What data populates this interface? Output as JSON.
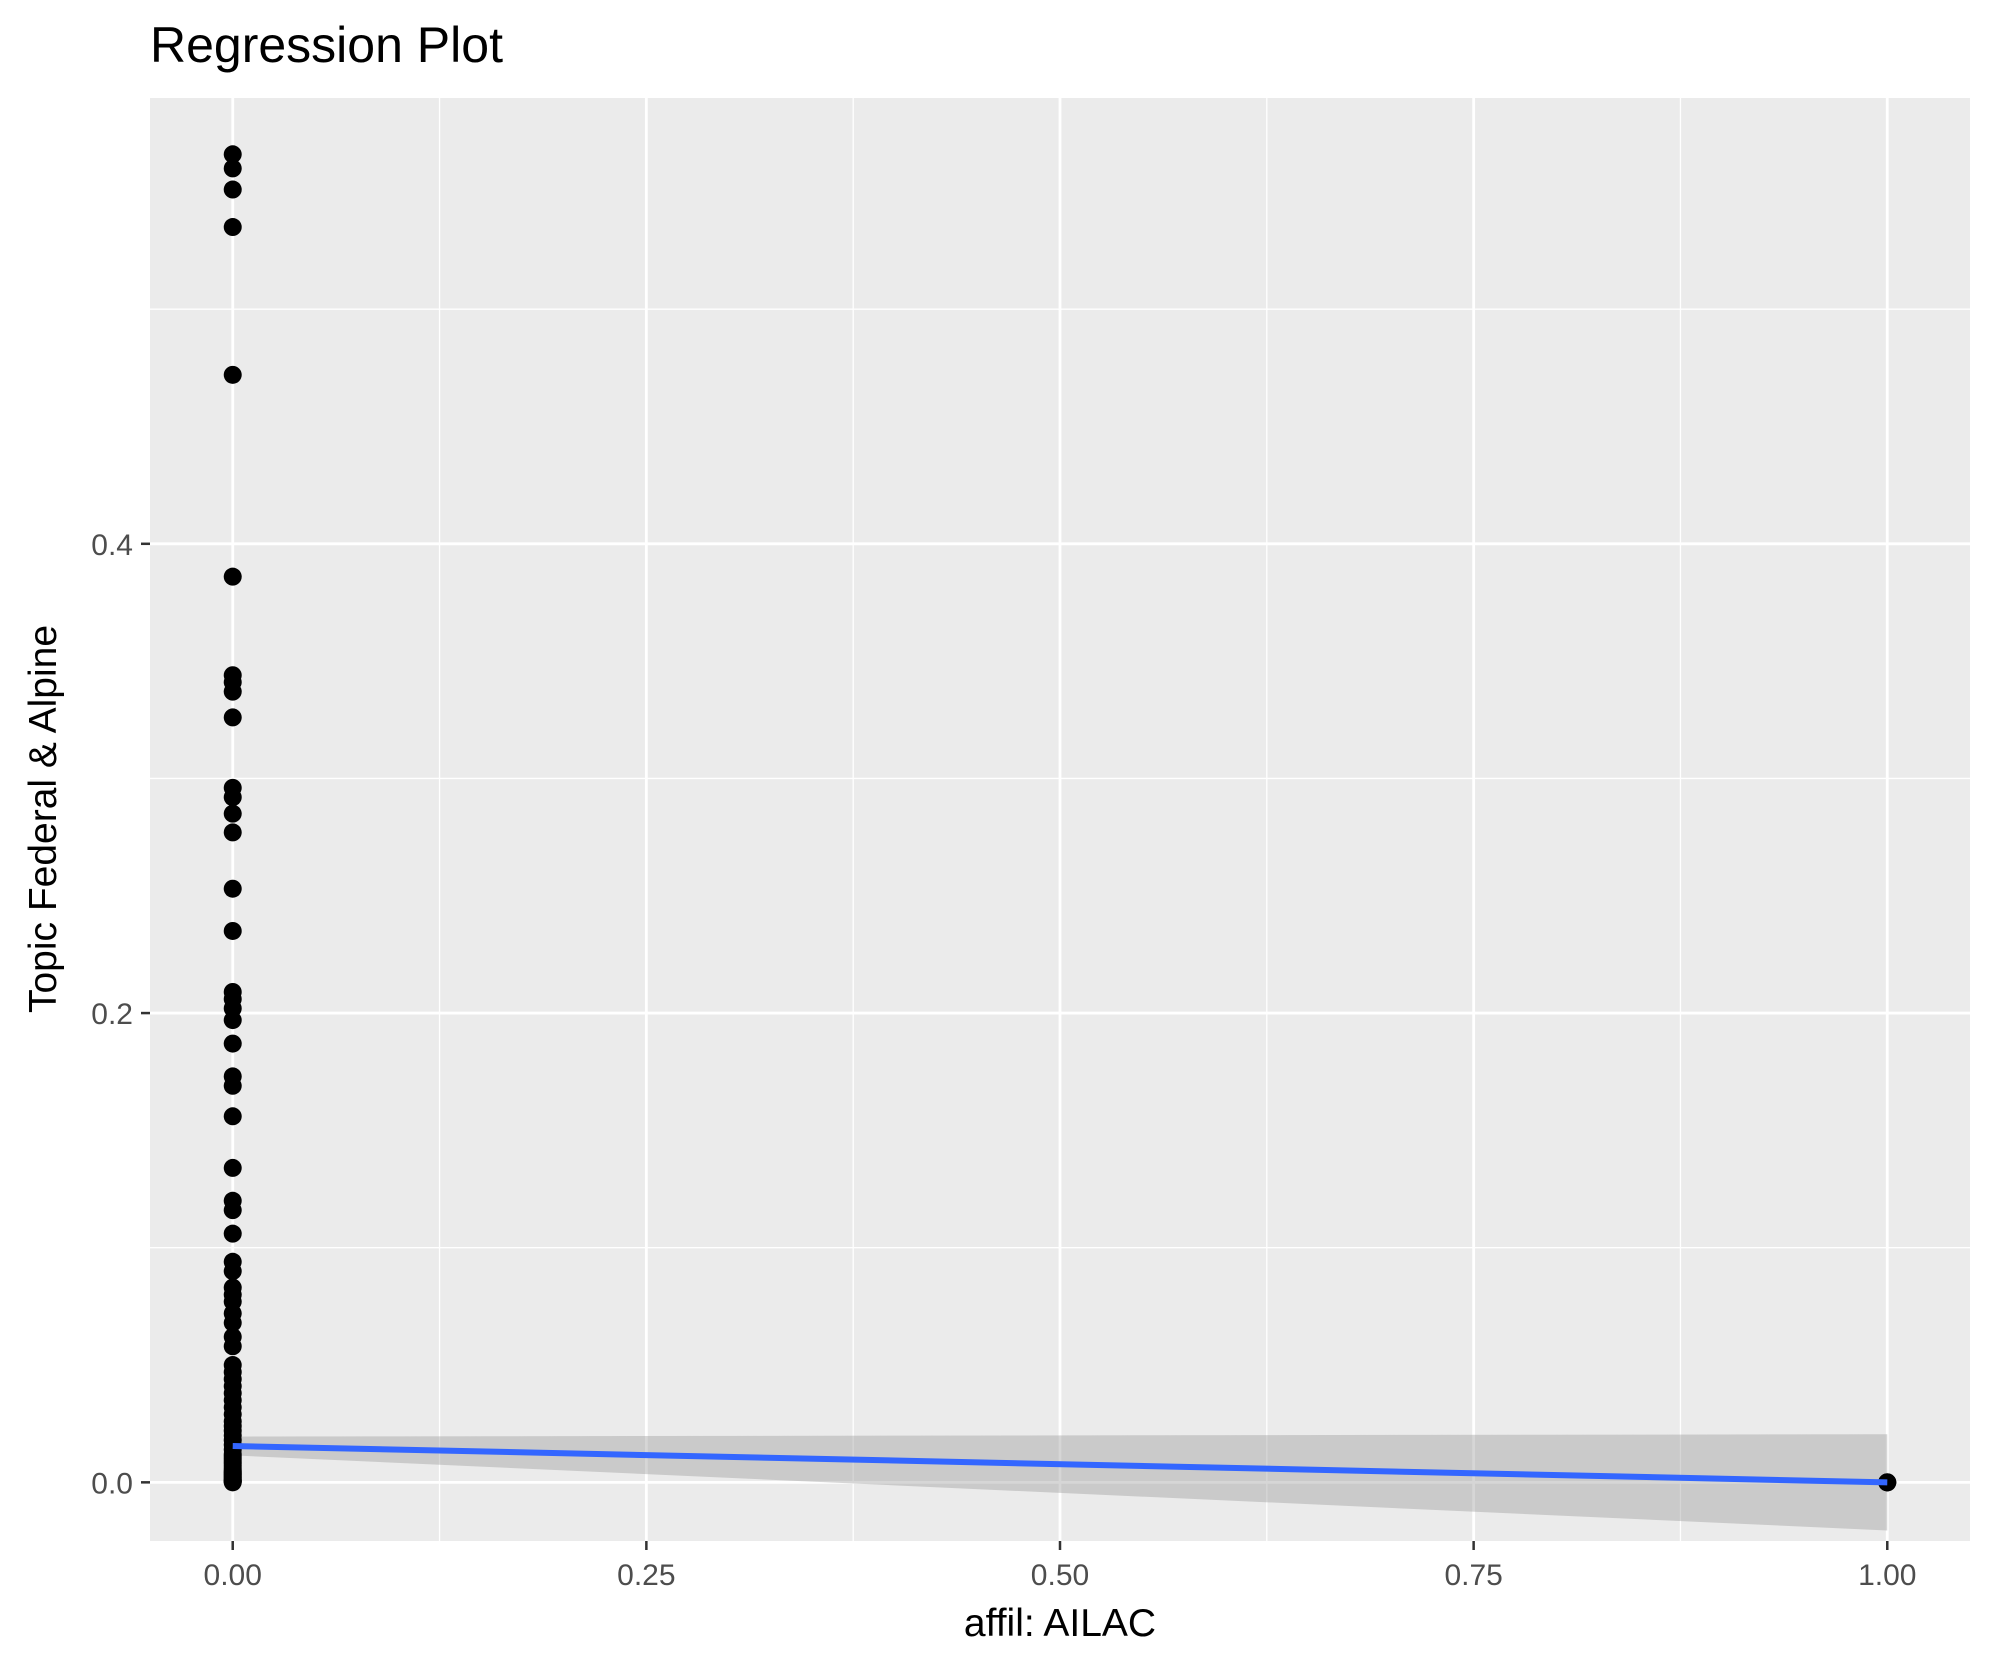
{
  "chart_data": {
    "type": "scatter",
    "title": "Regression Plot",
    "xlabel": "affil: AILAC",
    "ylabel": "Topic Federal & Alpine",
    "xlim": [
      -0.05,
      1.05
    ],
    "ylim": [
      -0.025,
      0.59
    ],
    "grid": true,
    "legend": "none",
    "x_ticks": [
      {
        "value": 0.0,
        "label": "0.00"
      },
      {
        "value": 0.25,
        "label": "0.25"
      },
      {
        "value": 0.5,
        "label": "0.50"
      },
      {
        "value": 0.75,
        "label": "0.75"
      },
      {
        "value": 1.0,
        "label": "1.00"
      }
    ],
    "y_ticks": [
      {
        "value": 0.0,
        "label": "0.0"
      },
      {
        "value": 0.2,
        "label": "0.2"
      },
      {
        "value": 0.4,
        "label": "0.4"
      }
    ],
    "points": {
      "x": [
        0,
        0,
        0,
        0,
        0,
        0,
        0,
        0,
        0,
        0,
        0,
        0,
        0,
        0,
        0,
        0,
        0,
        0,
        0,
        0,
        0,
        0,
        0,
        0,
        0,
        0,
        0,
        0,
        0,
        0,
        0,
        0,
        0,
        0,
        0,
        0,
        0,
        0,
        0,
        0,
        0,
        0,
        0,
        0,
        0,
        0,
        0,
        0,
        0,
        0,
        0,
        0,
        0,
        0,
        0,
        0,
        0,
        0,
        0,
        0,
        0,
        0,
        0,
        0,
        0,
        0,
        0,
        0,
        0,
        0,
        0,
        0,
        1,
        1,
        1
      ],
      "y": [
        0.566,
        0.56,
        0.551,
        0.535,
        0.472,
        0.386,
        0.344,
        0.341,
        0.337,
        0.326,
        0.296,
        0.292,
        0.285,
        0.277,
        0.253,
        0.235,
        0.209,
        0.206,
        0.202,
        0.197,
        0.187,
        0.173,
        0.169,
        0.156,
        0.134,
        0.12,
        0.116,
        0.106,
        0.094,
        0.09,
        0.083,
        0.08,
        0.077,
        0.072,
        0.068,
        0.062,
        0.058,
        0.05,
        0.047,
        0.044,
        0.041,
        0.038,
        0.035,
        0.032,
        0.029,
        0.026,
        0.024,
        0.022,
        0.02,
        0.018,
        0.016,
        0.014,
        0.012,
        0.011,
        0.01,
        0.009,
        0.008,
        0.007,
        0.006,
        0.005,
        0.0045,
        0.004,
        0.0035,
        0.003,
        0.0025,
        0.002,
        0.0015,
        0.001,
        0.0007,
        0.0005,
        0.0003,
        0.0,
        0.0,
        0.0,
        0.0
      ]
    },
    "regression": {
      "x": [
        0,
        1
      ],
      "y": [
        0.0155,
        0.0
      ],
      "ci_lower": [
        0.0115,
        -0.0205
      ],
      "ci_upper": [
        0.0195,
        0.0205
      ]
    },
    "colors": {
      "panel": "#ebebeb",
      "grid": "#ffffff",
      "points": "#000000",
      "line": "#3366ff",
      "ribbon": "#999999",
      "tick_text": "#4d4d4d",
      "tick_mark": "#333333"
    }
  }
}
